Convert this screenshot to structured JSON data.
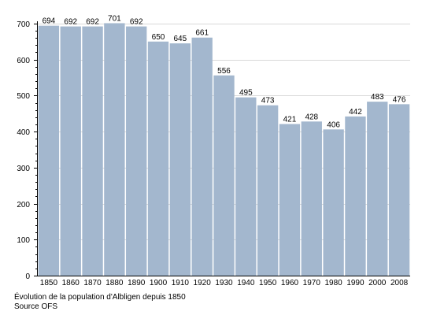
{
  "chart_data": {
    "type": "bar",
    "categories": [
      "1850",
      "1860",
      "1870",
      "1880",
      "1890",
      "1900",
      "1910",
      "1920",
      "1930",
      "1940",
      "1950",
      "1960",
      "1970",
      "1980",
      "1990",
      "2000",
      "2008"
    ],
    "values": [
      694,
      692,
      692,
      701,
      692,
      650,
      645,
      661,
      556,
      495,
      473,
      421,
      428,
      406,
      442,
      483,
      476
    ],
    "y_ticks": [
      0,
      100,
      200,
      300,
      400,
      500,
      600,
      700
    ],
    "ylim": [
      0,
      700
    ],
    "grid": true,
    "bar_color": "#a3b7ce",
    "grid_color": "#d9d9d9",
    "title": "",
    "xlabel": "",
    "ylabel": ""
  },
  "caption": {
    "line1": "Évolution de la population d'Albligen depuis 1850",
    "line2": "Source OFS"
  }
}
